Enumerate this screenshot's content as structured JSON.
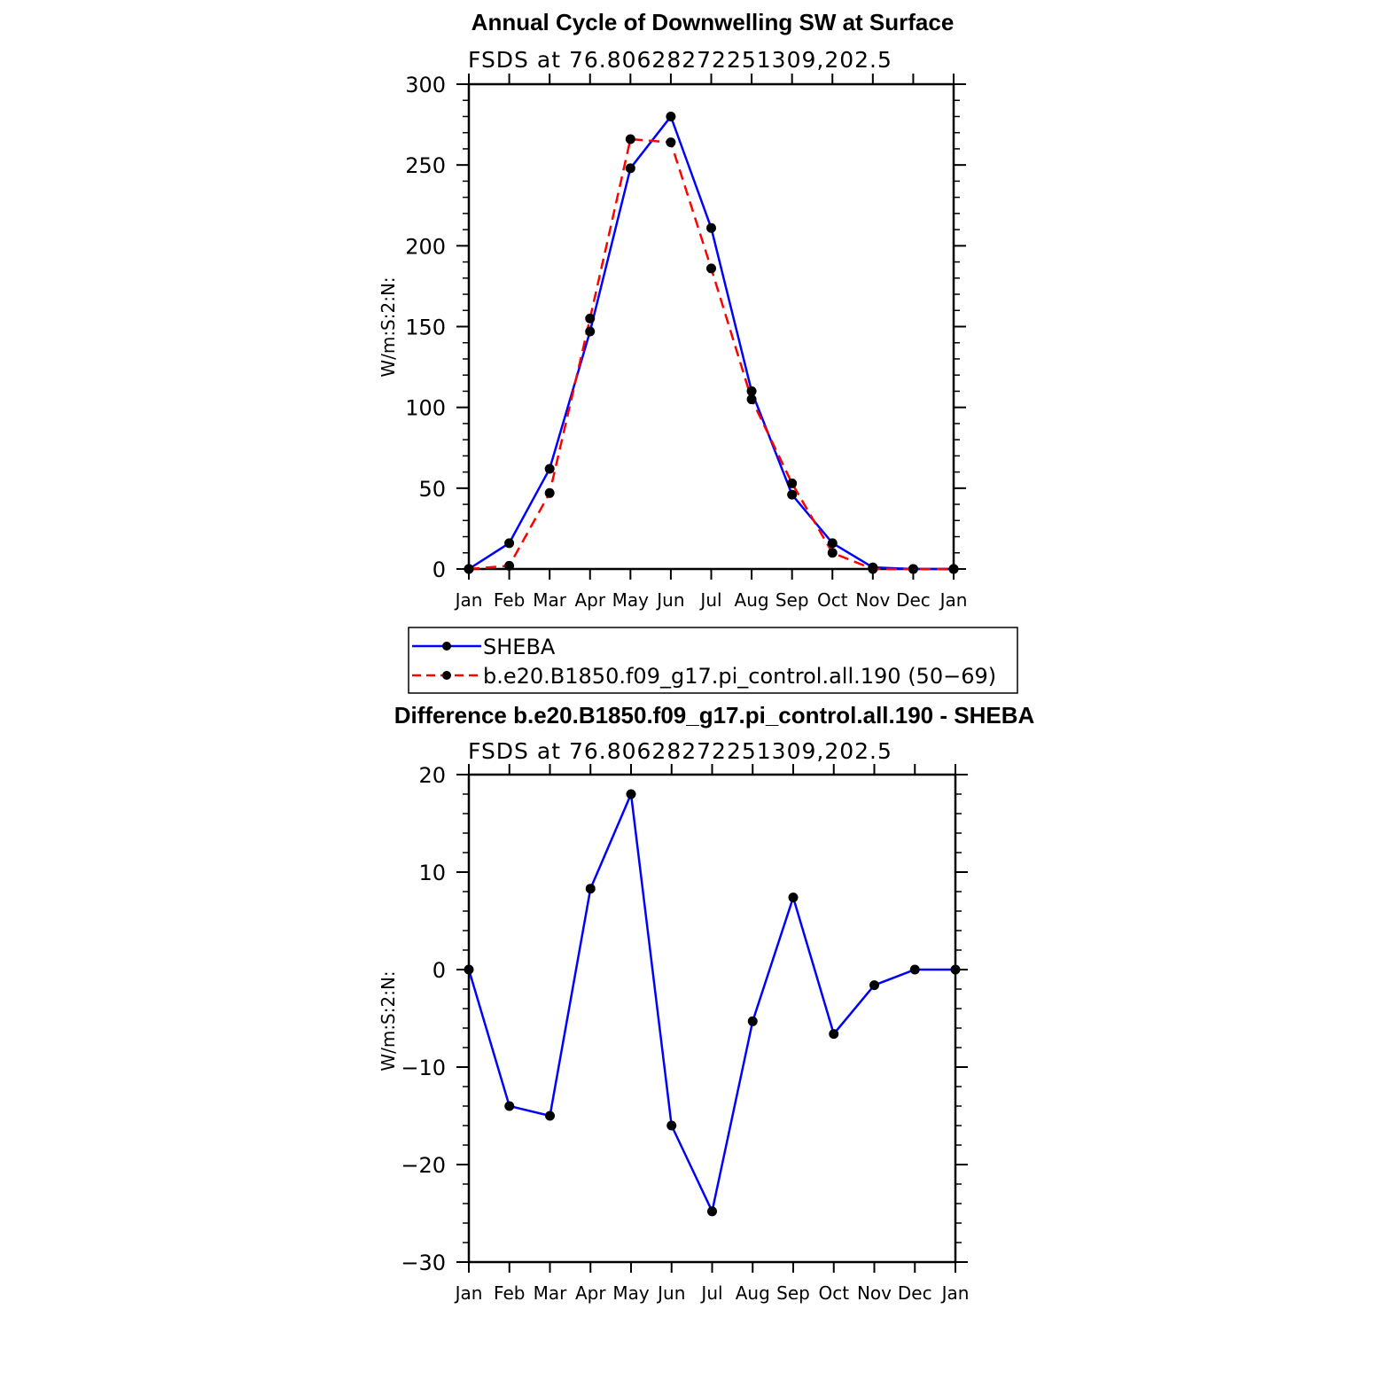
{
  "chart_data": [
    {
      "type": "line",
      "title": "Annual Cycle of Downwelling SW at Surface",
      "subtitle": "FSDS  at  76.80628272251309,202.5",
      "ylabel": "W/m:S:2:N:",
      "xlabel": "",
      "categories": [
        "Jan",
        "Feb",
        "Mar",
        "Apr",
        "May",
        "Jun",
        "Jul",
        "Aug",
        "Sep",
        "Oct",
        "Nov",
        "Dec",
        "Jan"
      ],
      "ylim": [
        0,
        300
      ],
      "yticks": [
        0,
        50,
        100,
        150,
        200,
        250,
        300
      ],
      "yticks_labels": [
        "0",
        "50",
        "100",
        "150",
        "200",
        "250",
        "300"
      ],
      "grid": false,
      "legend_position": "below",
      "series": [
        {
          "name": "SHEBA",
          "color": "#0000ff",
          "style": "solid",
          "values": [
            0,
            16,
            62,
            147,
            248,
            280,
            211,
            110,
            46,
            16,
            1,
            0,
            0
          ]
        },
        {
          "name": "b.e20.B1850.f09_g17.pi_control.all.190 (50−69)",
          "color": "#ff0000",
          "style": "dashed",
          "values": [
            0,
            2,
            47,
            155,
            266,
            264,
            186,
            105,
            53,
            10,
            0,
            0,
            0
          ]
        }
      ]
    },
    {
      "type": "line",
      "title": "Difference b.e20.B1850.f09_g17.pi_control.all.190 - SHEBA",
      "subtitle": "FSDS  at  76.80628272251309,202.5",
      "ylabel": "W/m:S:2:N:",
      "xlabel": "",
      "categories": [
        "Jan",
        "Feb",
        "Mar",
        "Apr",
        "May",
        "Jun",
        "Jul",
        "Aug",
        "Sep",
        "Oct",
        "Nov",
        "Dec",
        "Jan"
      ],
      "ylim": [
        -30,
        20
      ],
      "yticks": [
        -30,
        -20,
        -10,
        0,
        10,
        20
      ],
      "yticks_labels": [
        "−30",
        "−20",
        "−10",
        "0",
        "10",
        "20"
      ],
      "grid": false,
      "series": [
        {
          "color": "#0000ff",
          "style": "solid",
          "values": [
            0,
            -14,
            -15,
            8.3,
            18,
            -16,
            -24.8,
            -5.3,
            7.4,
            -6.6,
            -1.6,
            0,
            0
          ]
        }
      ]
    }
  ]
}
